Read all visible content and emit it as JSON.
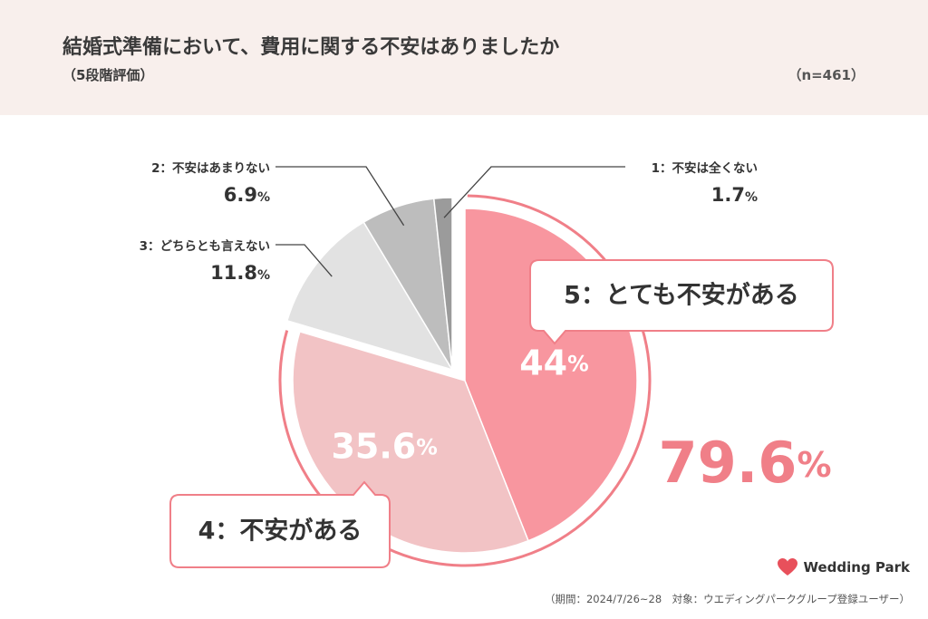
{
  "header": {
    "title": "結婚式準備において、費用に関する不安はありましたか",
    "subtitle": "（5段階評価）",
    "n_label": "（n=461）"
  },
  "chart_data": {
    "type": "pie",
    "title": "結婚式準備において、費用に関する不安はありましたか",
    "subtitle": "（5段階評価）",
    "slices": [
      {
        "label": "5：とても不安がある",
        "value": 44,
        "display": "44%",
        "color": "#f8969f"
      },
      {
        "label": "4：不安がある",
        "value": 35.6,
        "display": "35.6%",
        "color": "#f2c3c5"
      },
      {
        "label": "3：どちらとも言えない",
        "value": 11.8,
        "display": "11.8%",
        "color": "#e2e2e2"
      },
      {
        "label": "2：不安はあまりない",
        "value": 6.9,
        "display": "6.9%",
        "color": "#bdbdbd"
      },
      {
        "label": "1：不安は全くない",
        "value": 1.7,
        "display": "1.7%",
        "color": "#9b9b9b"
      }
    ],
    "combined_total": {
      "display": "79.6%",
      "color": "#f07f88"
    }
  },
  "footer": {
    "note": "（期間：2024/7/26~28　対象：ウエディングパークグループ登録ユーザー）"
  },
  "logo": {
    "text": "Wedding Park",
    "icon": "heart-icon",
    "icon_color": "#e8505b"
  }
}
